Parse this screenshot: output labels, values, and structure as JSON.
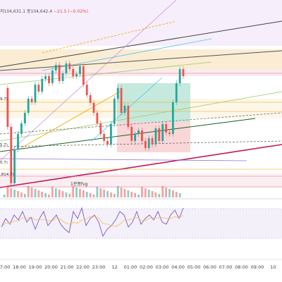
{
  "header": {
    "prefix": "저",
    "low_value": "104,631.1",
    "close_label": "종",
    "close_value": "104,642.4",
    "change": "−21.5 (−0.02%)"
  },
  "price_labels": [
    "9.7)",
    "5.7)",
    "0.7)",
    ",814.7)"
  ],
  "fvg_label": "1분봉fvg",
  "time_axis": [
    "17:00",
    "18:00",
    "19:00",
    "20:00",
    "21:00",
    "22:00",
    "23:00",
    "12",
    "01:00",
    "02:00",
    "03:00",
    "04:00",
    "05:00",
    "06:00",
    "07:00",
    "08:00",
    "09:00",
    "10"
  ],
  "colors": {
    "up": "#26a69a",
    "down": "#ef5350",
    "green_zone": "#b8e3d6",
    "red_zone": "#f7cdd0",
    "orange_band": "#f5deb0",
    "rsi_band": "#ece6f5"
  },
  "chart_data": {
    "type": "candlestick",
    "price_series": [
      125,
      180,
      260,
      212,
      190,
      175,
      160,
      140,
      145,
      120,
      130,
      112,
      108,
      118,
      100,
      92,
      115,
      104,
      90,
      98,
      108,
      105,
      94,
      120,
      135,
      146,
      160,
      175,
      190,
      200,
      205,
      176,
      140,
      125,
      160,
      150,
      180,
      200,
      190,
      185,
      200,
      210,
      196,
      205,
      182,
      200,
      176,
      188,
      190,
      145,
      118,
      98,
      108
    ],
    "rsi_series": [
      322,
      310,
      318,
      305,
      312,
      300,
      315,
      308,
      325,
      310,
      300,
      320,
      312,
      305,
      318,
      325,
      330,
      300,
      310,
      295,
      320,
      310,
      305,
      315,
      335,
      325,
      320,
      312,
      300,
      305,
      322,
      315,
      300,
      318,
      310,
      305,
      312,
      300,
      315,
      318,
      305,
      298,
      310,
      295
    ]
  }
}
